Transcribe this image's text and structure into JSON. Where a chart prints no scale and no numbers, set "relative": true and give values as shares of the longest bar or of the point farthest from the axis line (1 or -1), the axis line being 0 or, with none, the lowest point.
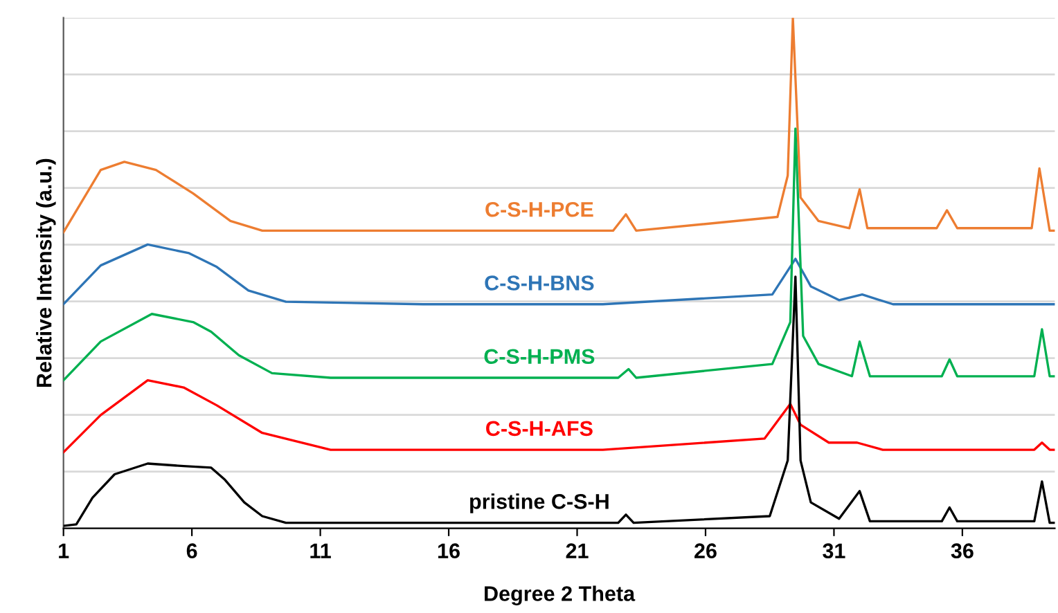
{
  "chart_data": {
    "type": "line",
    "xlabel": "Degree 2 Theta",
    "ylabel": "Relative Intensity (a.u.)",
    "relative": true,
    "xlim": [
      1,
      39.6
    ],
    "xticks": [
      1,
      6,
      11,
      16,
      21,
      26,
      31,
      36
    ],
    "grid": "y",
    "tick_labels": "x",
    "line_style": "solid",
    "marker": "none",
    "series": [
      {
        "name": "C-S-H-PCE",
        "color": "#ed7d31",
        "x": [
          1.0,
          2.45,
          3.37,
          4.6,
          6.05,
          7.5,
          8.74,
          15,
          22.4,
          22.9,
          23.3,
          28.8,
          29.2,
          29.4,
          29.7,
          30.4,
          31.6,
          32.0,
          32.3,
          35.0,
          35.4,
          35.8,
          38.7,
          39.0,
          39.4,
          39.6
        ],
        "values": [
          0.58,
          0.702,
          0.718,
          0.702,
          0.656,
          0.602,
          0.583,
          0.583,
          0.583,
          0.615,
          0.583,
          0.61,
          0.691,
          1.0,
          0.648,
          0.602,
          0.588,
          0.664,
          0.588,
          0.588,
          0.623,
          0.588,
          0.588,
          0.705,
          0.583,
          0.583
        ]
      },
      {
        "name": "C-S-H-BNS",
        "color": "#2e75b6",
        "x": [
          1.0,
          2.45,
          4.28,
          5.89,
          6.97,
          8.2,
          9.66,
          15,
          22,
          28.6,
          29.5,
          30.1,
          31.2,
          32.1,
          33.3,
          39.6
        ],
        "values": [
          0.439,
          0.515,
          0.556,
          0.539,
          0.512,
          0.466,
          0.444,
          0.439,
          0.439,
          0.458,
          0.528,
          0.474,
          0.447,
          0.458,
          0.439,
          0.439
        ]
      },
      {
        "name": "C-S-H-PMS",
        "color": "#00b050",
        "x": [
          1.0,
          2.45,
          4.44,
          6.05,
          6.75,
          7.83,
          9.12,
          11.4,
          22.6,
          23.0,
          23.3,
          28.6,
          29.3,
          29.5,
          29.8,
          30.4,
          31.7,
          32.0,
          32.4,
          35.2,
          35.5,
          35.8,
          38.8,
          39.1,
          39.4,
          39.6
        ],
        "values": [
          0.29,
          0.366,
          0.42,
          0.404,
          0.385,
          0.339,
          0.304,
          0.295,
          0.295,
          0.312,
          0.295,
          0.322,
          0.404,
          0.783,
          0.377,
          0.322,
          0.298,
          0.366,
          0.298,
          0.298,
          0.331,
          0.298,
          0.298,
          0.39,
          0.298,
          0.298
        ]
      },
      {
        "name": "C-S-H-AFS",
        "color": "#ff0000",
        "x": [
          1.0,
          2.45,
          4.28,
          5.68,
          6.97,
          8.74,
          11.4,
          22,
          28.3,
          29.3,
          29.7,
          30.8,
          31.9,
          32.9,
          38.8,
          39.1,
          39.4,
          39.6
        ],
        "values": [
          0.149,
          0.222,
          0.29,
          0.276,
          0.241,
          0.187,
          0.154,
          0.154,
          0.176,
          0.244,
          0.203,
          0.168,
          0.168,
          0.154,
          0.154,
          0.168,
          0.154,
          0.154
        ]
      },
      {
        "name": "pristine C-S-H",
        "color": "#000000",
        "x": [
          1.0,
          1.5,
          2.13,
          2.99,
          4.28,
          5.68,
          6.75,
          7.29,
          8.04,
          8.74,
          9.66,
          15,
          22.6,
          22.9,
          23.2,
          28.5,
          29.2,
          29.5,
          29.7,
          30.1,
          31.2,
          32.0,
          32.4,
          35.2,
          35.5,
          35.8,
          38.8,
          39.1,
          39.4,
          39.6
        ],
        "values": [
          0.005,
          0.008,
          0.06,
          0.106,
          0.127,
          0.122,
          0.119,
          0.095,
          0.051,
          0.024,
          0.011,
          0.011,
          0.011,
          0.027,
          0.011,
          0.024,
          0.133,
          0.493,
          0.133,
          0.051,
          0.019,
          0.073,
          0.014,
          0.014,
          0.041,
          0.014,
          0.014,
          0.092,
          0.011,
          0.011
        ]
      }
    ]
  }
}
